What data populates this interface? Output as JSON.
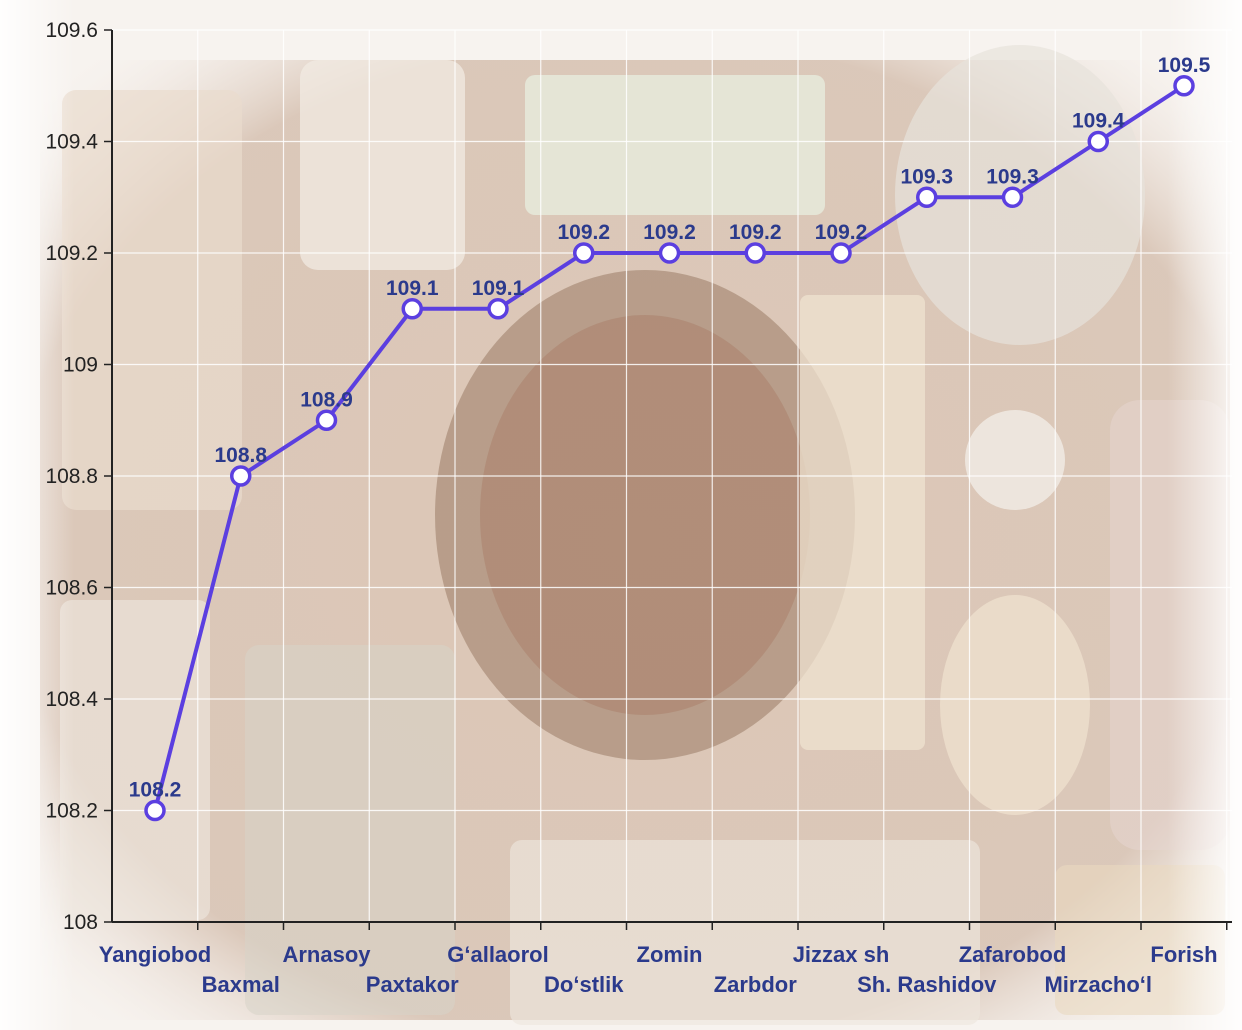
{
  "chart_data": {
    "type": "line",
    "categories": [
      "Yangiobod",
      "Baxmal",
      "Arnasoy",
      "Paxtakor",
      "G‘allaorol",
      "Do‘stlik",
      "Zomin",
      "Zarbdor",
      "Jizzax sh",
      "Sh. Rashidov",
      "Zafarobod",
      "Mirzacho‘l",
      "Forish"
    ],
    "values": [
      108.2,
      108.8,
      108.9,
      109.1,
      109.1,
      109.2,
      109.2,
      109.2,
      109.2,
      109.3,
      109.3,
      109.4,
      109.5
    ],
    "data_labels": [
      "108.2",
      "108.8",
      "108.9",
      "109.1",
      "109.1",
      "109.2",
      "109.2",
      "109.2",
      "109.2",
      "109.3",
      "109.3",
      "109.4",
      "109.5"
    ],
    "y_ticks": [
      "108",
      "108.2",
      "108.4",
      "108.6",
      "108.8",
      "109",
      "109.2",
      "109.4",
      "109.6"
    ],
    "ylim": [
      108,
      109.6
    ],
    "title": "",
    "xlabel": "",
    "ylabel": "",
    "grid": true,
    "line_color": "#5b3fe0",
    "marker_fill": "#ffffff",
    "label_color": "#2b3a8c",
    "background": "food-photo-faded"
  }
}
